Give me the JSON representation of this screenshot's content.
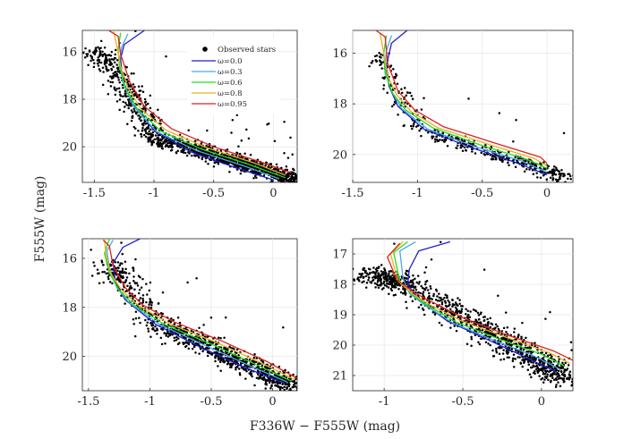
{
  "figure": {
    "shared_xlabel": "F336W − F555W (mag)",
    "shared_ylabel": "F555W (mag)"
  },
  "legend": {
    "entries": [
      {
        "key": "observed",
        "label": "Observed stars",
        "marker": "dot",
        "color": "#000000"
      },
      {
        "key": "w0",
        "label": "ω=0.0",
        "color": "#1f1fd0"
      },
      {
        "key": "w3",
        "label": "ω=0.3",
        "color": "#4aa8e8"
      },
      {
        "key": "w6",
        "label": "ω=0.6",
        "color": "#22dd22"
      },
      {
        "key": "w8",
        "label": "ω=0.8",
        "color": "#e8b020"
      },
      {
        "key": "w95",
        "label": "ω=0.95",
        "color": "#e02020"
      }
    ]
  },
  "chart_data": [
    {
      "type": "scatter",
      "panel": "top-left",
      "xlim": [
        -1.6,
        0.2
      ],
      "ylim": [
        21.5,
        15.1
      ],
      "x_ticks": [
        -1.5,
        -1,
        -0.5,
        0
      ],
      "x_tick_labels": [
        "-1.5",
        "-1",
        "-0.5",
        "0"
      ],
      "y_ticks": [
        16,
        18,
        20
      ],
      "y_tick_labels": [
        "16",
        "18",
        "20"
      ],
      "grid": true,
      "legend": "top-right",
      "observed": {
        "n": 1400,
        "seed": 11,
        "tip": [
          -1.5,
          16.0
        ],
        "knee": [
          -1.0,
          19.6
        ],
        "end": [
          0.2,
          21.4
        ],
        "spread": 0.12
      },
      "isochrones": {
        "w0": [
          [
            -1.08,
            15.1
          ],
          [
            -1.25,
            15.7
          ],
          [
            -1.28,
            16.3
          ],
          [
            -1.26,
            17.2
          ],
          [
            -1.18,
            18.2
          ],
          [
            -1.0,
            19.3
          ],
          [
            -0.7,
            20.2
          ],
          [
            -0.3,
            20.9
          ],
          [
            0.0,
            21.4
          ]
        ],
        "w3": [
          [
            -1.22,
            15.25
          ],
          [
            -1.27,
            15.8
          ],
          [
            -1.29,
            16.4
          ],
          [
            -1.26,
            17.3
          ],
          [
            -1.17,
            18.3
          ],
          [
            -0.98,
            19.35
          ],
          [
            -0.65,
            20.15
          ],
          [
            -0.25,
            20.8
          ],
          [
            0.05,
            21.35
          ]
        ],
        "w6": [
          [
            -1.28,
            15.2
          ],
          [
            -1.3,
            15.9
          ],
          [
            -1.29,
            16.6
          ],
          [
            -1.24,
            17.5
          ],
          [
            -1.14,
            18.4
          ],
          [
            -0.94,
            19.35
          ],
          [
            -0.6,
            20.1
          ],
          [
            -0.2,
            20.75
          ],
          [
            0.1,
            21.3
          ]
        ],
        "w8": [
          [
            -1.34,
            15.1
          ],
          [
            -1.31,
            15.8
          ],
          [
            -1.28,
            16.6
          ],
          [
            -1.22,
            17.5
          ],
          [
            -1.11,
            18.4
          ],
          [
            -0.9,
            19.3
          ],
          [
            -0.55,
            20.05
          ],
          [
            -0.15,
            20.7
          ],
          [
            0.1,
            21.2
          ]
        ],
        "w95": [
          [
            -1.38,
            15.1
          ],
          [
            -1.3,
            15.35
          ],
          [
            -1.28,
            16.1
          ],
          [
            -1.2,
            17.3
          ],
          [
            -1.08,
            18.3
          ],
          [
            -0.85,
            19.25
          ],
          [
            -0.5,
            20.0
          ],
          [
            -0.1,
            20.65
          ],
          [
            0.15,
            21.1
          ]
        ]
      }
    },
    {
      "type": "scatter",
      "panel": "top-right",
      "xlim": [
        -1.5,
        0.2
      ],
      "ylim": [
        21.1,
        15.1
      ],
      "x_ticks": [
        -1.5,
        -1,
        -0.5,
        0
      ],
      "x_tick_labels": [
        "-1.5",
        "-1",
        "-0.5",
        "0"
      ],
      "y_ticks": [
        16,
        18,
        20
      ],
      "y_tick_labels": [
        "16",
        "18",
        "20"
      ],
      "grid": true,
      "observed": {
        "n": 420,
        "seed": 23,
        "tip": [
          -1.35,
          16.0
        ],
        "knee": [
          -1.0,
          19.0
        ],
        "end": [
          0.18,
          20.95
        ],
        "spread": 0.1
      },
      "isochrones": {
        "w0": [
          [
            -1.08,
            15.1
          ],
          [
            -1.2,
            15.6
          ],
          [
            -1.24,
            16.5
          ],
          [
            -1.22,
            17.3
          ],
          [
            -1.15,
            18.1
          ],
          [
            -0.95,
            19.0
          ],
          [
            -0.6,
            19.7
          ],
          [
            -0.25,
            20.3
          ],
          [
            0.0,
            20.8
          ]
        ],
        "w3": [
          [
            -1.2,
            15.3
          ],
          [
            -1.24,
            15.9
          ],
          [
            -1.25,
            16.7
          ],
          [
            -1.2,
            17.5
          ],
          [
            -1.12,
            18.2
          ],
          [
            -0.92,
            19.0
          ],
          [
            -0.55,
            19.7
          ],
          [
            -0.2,
            20.25
          ],
          [
            0.0,
            20.7
          ]
        ],
        "w6": [
          [
            -1.24,
            15.3
          ],
          [
            -1.26,
            16.0
          ],
          [
            -1.25,
            16.8
          ],
          [
            -1.19,
            17.6
          ],
          [
            -1.09,
            18.25
          ],
          [
            -0.88,
            18.95
          ],
          [
            -0.5,
            19.65
          ],
          [
            -0.15,
            20.2
          ],
          [
            0.0,
            20.55
          ]
        ],
        "w8": [
          [
            -1.29,
            15.2
          ],
          [
            -1.26,
            16.0
          ],
          [
            -1.23,
            16.9
          ],
          [
            -1.16,
            17.65
          ],
          [
            -1.05,
            18.3
          ],
          [
            -0.84,
            18.95
          ],
          [
            -0.45,
            19.6
          ],
          [
            -0.1,
            20.15
          ],
          [
            0.0,
            20.45
          ]
        ],
        "w95": [
          [
            -1.32,
            15.1
          ],
          [
            -1.25,
            15.35
          ],
          [
            -1.23,
            16.4
          ],
          [
            -1.15,
            17.5
          ],
          [
            -1.02,
            18.25
          ],
          [
            -0.8,
            18.9
          ],
          [
            -0.4,
            19.55
          ],
          [
            -0.05,
            20.1
          ],
          [
            0.0,
            20.35
          ]
        ]
      }
    },
    {
      "type": "scatter",
      "panel": "bottom-left",
      "xlim": [
        -1.55,
        0.2
      ],
      "ylim": [
        21.4,
        15.2
      ],
      "x_ticks": [
        -1.5,
        -1,
        -0.5,
        0
      ],
      "x_tick_labels": [
        "-1.5",
        "-1",
        "-0.5",
        "0"
      ],
      "y_ticks": [
        16,
        18,
        20
      ],
      "y_tick_labels": [
        "16",
        "18",
        "20"
      ],
      "grid": true,
      "observed": {
        "n": 1000,
        "seed": 37,
        "tip": [
          -1.35,
          16.3
        ],
        "knee": [
          -0.95,
          18.6
        ],
        "end": [
          0.2,
          21.3
        ],
        "spread": 0.14
      },
      "isochrones": {
        "w0": [
          [
            -1.08,
            15.2
          ],
          [
            -1.22,
            15.55
          ],
          [
            -1.3,
            16.2
          ],
          [
            -1.28,
            17.0
          ],
          [
            -1.2,
            17.7
          ],
          [
            -0.95,
            18.7
          ],
          [
            -0.6,
            19.6
          ],
          [
            -0.25,
            20.4
          ],
          [
            0.1,
            21.1
          ]
        ],
        "w3": [
          [
            -1.3,
            15.25
          ],
          [
            -1.35,
            15.7
          ],
          [
            -1.33,
            16.4
          ],
          [
            -1.27,
            17.2
          ],
          [
            -1.17,
            17.8
          ],
          [
            -0.92,
            18.7
          ],
          [
            -0.55,
            19.55
          ],
          [
            -0.2,
            20.35
          ],
          [
            0.12,
            21.05
          ]
        ],
        "w6": [
          [
            -1.33,
            15.2
          ],
          [
            -1.37,
            15.8
          ],
          [
            -1.33,
            16.6
          ],
          [
            -1.25,
            17.3
          ],
          [
            -1.13,
            17.9
          ],
          [
            -0.88,
            18.7
          ],
          [
            -0.5,
            19.5
          ],
          [
            -0.15,
            20.3
          ],
          [
            0.15,
            21.0
          ]
        ],
        "w8": [
          [
            -1.37,
            15.2
          ],
          [
            -1.36,
            15.8
          ],
          [
            -1.32,
            16.6
          ],
          [
            -1.23,
            17.3
          ],
          [
            -1.1,
            17.9
          ],
          [
            -0.85,
            18.65
          ],
          [
            -0.45,
            19.45
          ],
          [
            -0.1,
            20.25
          ],
          [
            0.18,
            20.95
          ]
        ],
        "w95": [
          [
            -1.38,
            15.25
          ],
          [
            -1.33,
            15.5
          ],
          [
            -1.3,
            16.3
          ],
          [
            -1.2,
            17.2
          ],
          [
            -1.06,
            17.9
          ],
          [
            -0.8,
            18.6
          ],
          [
            -0.4,
            19.4
          ],
          [
            -0.05,
            20.2
          ],
          [
            0.2,
            20.9
          ]
        ]
      }
    },
    {
      "type": "scatter",
      "panel": "bottom-right",
      "xlim": [
        -1.2,
        0.2
      ],
      "ylim": [
        21.5,
        16.5
      ],
      "x_ticks": [
        -1,
        -0.5,
        0
      ],
      "x_tick_labels": [
        "-1",
        "-0.5",
        "0"
      ],
      "y_ticks": [
        17,
        18,
        19,
        20,
        21
      ],
      "y_tick_labels": [
        "17",
        "18",
        "19",
        "20",
        "21"
      ],
      "grid": true,
      "observed": {
        "n": 1100,
        "seed": 53,
        "tip": [
          -1.1,
          17.6
        ],
        "knee": [
          -0.8,
          18.2
        ],
        "end": [
          0.2,
          21.2
        ],
        "spread": 0.13
      },
      "isochrones": {
        "w0": [
          [
            -0.58,
            16.6
          ],
          [
            -0.78,
            16.9
          ],
          [
            -0.84,
            17.5
          ],
          [
            -0.85,
            18.0
          ],
          [
            -0.78,
            18.5
          ],
          [
            -0.6,
            19.2
          ],
          [
            -0.35,
            19.8
          ],
          [
            -0.1,
            20.4
          ],
          [
            0.1,
            20.9
          ]
        ],
        "w3": [
          [
            -0.8,
            16.6
          ],
          [
            -0.9,
            16.9
          ],
          [
            -0.88,
            17.8
          ],
          [
            -0.84,
            18.3
          ],
          [
            -0.75,
            18.65
          ],
          [
            -0.57,
            19.25
          ],
          [
            -0.3,
            19.85
          ],
          [
            -0.05,
            20.35
          ],
          [
            0.12,
            20.8
          ]
        ],
        "w6": [
          [
            -0.85,
            16.6
          ],
          [
            -0.94,
            16.95
          ],
          [
            -0.9,
            17.9
          ],
          [
            -0.82,
            18.35
          ],
          [
            -0.72,
            18.7
          ],
          [
            -0.54,
            19.25
          ],
          [
            -0.27,
            19.8
          ],
          [
            0.0,
            20.3
          ],
          [
            0.15,
            20.7
          ]
        ],
        "w8": [
          [
            -0.88,
            16.6
          ],
          [
            -0.96,
            17.0
          ],
          [
            -0.91,
            17.9
          ],
          [
            -0.81,
            18.35
          ],
          [
            -0.7,
            18.7
          ],
          [
            -0.51,
            19.2
          ],
          [
            -0.22,
            19.75
          ],
          [
            0.05,
            20.25
          ],
          [
            0.18,
            20.6
          ]
        ],
        "w95": [
          [
            -0.9,
            16.65
          ],
          [
            -0.98,
            17.1
          ],
          [
            -0.92,
            17.85
          ],
          [
            -0.8,
            18.3
          ],
          [
            -0.67,
            18.65
          ],
          [
            -0.48,
            19.15
          ],
          [
            -0.2,
            19.7
          ],
          [
            0.08,
            20.2
          ],
          [
            0.2,
            20.5
          ]
        ]
      }
    }
  ]
}
